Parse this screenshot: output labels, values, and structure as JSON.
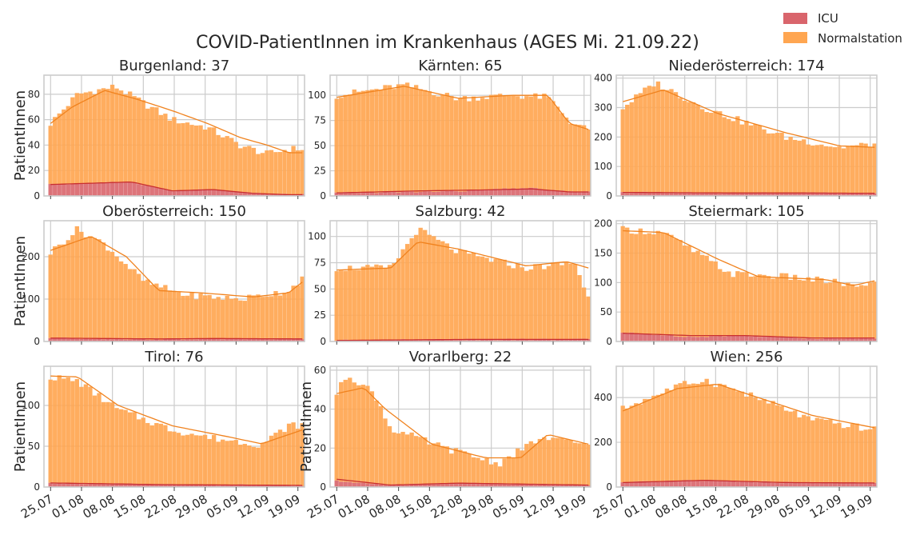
{
  "chart_data": {
    "type": "bar",
    "title": "COVID-PatientInnen im Krankenhaus (AGES Mi. 21.09.22)",
    "ylabel": "PatientInnen",
    "x_tick_labels": [
      "25.07",
      "01.08",
      "08.08",
      "15.08",
      "22.08",
      "29.08",
      "05.09",
      "12.09",
      "19.09"
    ],
    "date_range": [
      "2022-07-25",
      "2022-09-21"
    ],
    "legend": {
      "placement": "top-right",
      "entries": [
        {
          "label": "ICU",
          "color": "#d9656c"
        },
        {
          "label": "Normalstation",
          "color": "#ffa651"
        }
      ]
    },
    "grid": true,
    "stacked": true,
    "series_colors": {
      "icu_bar": "#d9656c",
      "normal_bar": "#ffa651",
      "icu_line": "#c92f2f",
      "normal_line": "#f0821e"
    },
    "panels": [
      {
        "title": "Burgenland: 37",
        "ylim": [
          0,
          95
        ],
        "yticks": [
          0,
          20,
          40,
          60,
          80
        ],
        "ylabel_shown": true,
        "total_start_end": [
          [
            0,
            57
          ],
          [
            10,
            80
          ],
          [
            24,
            86
          ],
          [
            45,
            60
          ],
          [
            58,
            54
          ],
          [
            70,
            40
          ],
          [
            80,
            33
          ],
          [
            88,
            37
          ]
        ],
        "total_line": [
          [
            0,
            57
          ],
          [
            8,
            70
          ],
          [
            20,
            83
          ],
          [
            32,
            76
          ],
          [
            45,
            67
          ],
          [
            58,
            57
          ],
          [
            70,
            46
          ],
          [
            80,
            40
          ],
          [
            88,
            34
          ]
        ],
        "icu_start_end": [
          [
            0,
            9
          ],
          [
            30,
            11
          ],
          [
            45,
            4
          ],
          [
            60,
            5
          ],
          [
            75,
            2
          ],
          [
            88,
            1
          ]
        ],
        "icu_line": [
          [
            0,
            9
          ],
          [
            30,
            11
          ],
          [
            45,
            4
          ],
          [
            60,
            5
          ],
          [
            75,
            2
          ],
          [
            88,
            1
          ]
        ]
      },
      {
        "title": "Kärnten: 65",
        "ylim": [
          0,
          120
        ],
        "yticks": [
          0,
          25,
          50,
          75,
          100
        ],
        "ylabel_shown": false,
        "total_start_end": [
          [
            0,
            100
          ],
          [
            25,
            110
          ],
          [
            45,
            97
          ],
          [
            65,
            100
          ],
          [
            78,
            98
          ],
          [
            86,
            75
          ],
          [
            93,
            65
          ]
        ],
        "total_line": [
          [
            0,
            98
          ],
          [
            25,
            109
          ],
          [
            45,
            97
          ],
          [
            65,
            100
          ],
          [
            78,
            100
          ],
          [
            86,
            72
          ],
          [
            93,
            66
          ]
        ],
        "icu_start_end": [
          [
            0,
            3
          ],
          [
            30,
            4
          ],
          [
            50,
            5
          ],
          [
            70,
            8
          ],
          [
            86,
            4
          ],
          [
            93,
            4
          ]
        ],
        "icu_line": [
          [
            0,
            3
          ],
          [
            30,
            5
          ],
          [
            55,
            6
          ],
          [
            72,
            7
          ],
          [
            86,
            4
          ],
          [
            93,
            4
          ]
        ]
      },
      {
        "title": "Niederösterreich: 174",
        "ylim": [
          0,
          410
        ],
        "yticks": [
          0,
          100,
          200,
          300,
          400
        ],
        "ylabel_shown": false,
        "total_start_end": [
          [
            0,
            300
          ],
          [
            12,
            385
          ],
          [
            30,
            300
          ],
          [
            60,
            200
          ],
          [
            80,
            165
          ],
          [
            93,
            175
          ]
        ],
        "total_line": [
          [
            0,
            320
          ],
          [
            15,
            360
          ],
          [
            35,
            280
          ],
          [
            60,
            215
          ],
          [
            80,
            170
          ],
          [
            93,
            165
          ]
        ],
        "icu_start_end": [
          [
            0,
            12
          ],
          [
            40,
            10
          ],
          [
            65,
            10
          ],
          [
            93,
            9
          ]
        ],
        "icu_line": [
          [
            0,
            12
          ],
          [
            40,
            10
          ],
          [
            65,
            10
          ],
          [
            93,
            9
          ]
        ]
      },
      {
        "title": "Oberösterreich: 150",
        "ylim": [
          0,
          285
        ],
        "yticks": [
          0,
          100,
          200
        ],
        "ylabel_shown": true,
        "total_start_end": [
          [
            0,
            210
          ],
          [
            10,
            265
          ],
          [
            20,
            230
          ],
          [
            35,
            140
          ],
          [
            50,
            110
          ],
          [
            70,
            100
          ],
          [
            88,
            120
          ],
          [
            93,
            150
          ]
        ],
        "total_line": [
          [
            0,
            215
          ],
          [
            15,
            248
          ],
          [
            28,
            200
          ],
          [
            40,
            120
          ],
          [
            55,
            115
          ],
          [
            75,
            105
          ],
          [
            88,
            115
          ],
          [
            93,
            140
          ]
        ],
        "icu_start_end": [
          [
            0,
            8
          ],
          [
            40,
            5
          ],
          [
            60,
            6
          ],
          [
            93,
            6
          ]
        ],
        "icu_line": [
          [
            0,
            8
          ],
          [
            40,
            6
          ],
          [
            60,
            7
          ],
          [
            93,
            6
          ]
        ]
      },
      {
        "title": "Salzburg: 42",
        "ylim": [
          0,
          115
        ],
        "yticks": [
          0,
          25,
          50,
          75,
          100
        ],
        "ylabel_shown": false,
        "total_start_end": [
          [
            0,
            70
          ],
          [
            20,
            70
          ],
          [
            30,
            107
          ],
          [
            45,
            85
          ],
          [
            70,
            70
          ],
          [
            88,
            75
          ],
          [
            93,
            42
          ]
        ],
        "total_line": [
          [
            0,
            68
          ],
          [
            20,
            70
          ],
          [
            30,
            95
          ],
          [
            45,
            88
          ],
          [
            70,
            72
          ],
          [
            85,
            76
          ],
          [
            93,
            70
          ]
        ],
        "icu_start_end": [
          [
            0,
            1
          ],
          [
            50,
            2
          ],
          [
            93,
            2
          ]
        ],
        "icu_line": [
          [
            0,
            1
          ],
          [
            50,
            2
          ],
          [
            93,
            2
          ]
        ]
      },
      {
        "title": "Steiermark: 105",
        "ylim": [
          0,
          205
        ],
        "yticks": [
          0,
          50,
          100,
          150,
          200
        ],
        "ylabel_shown": false,
        "total_start_end": [
          [
            0,
            190
          ],
          [
            15,
            185
          ],
          [
            40,
            115
          ],
          [
            60,
            110
          ],
          [
            80,
            100
          ],
          [
            88,
            90
          ],
          [
            93,
            105
          ]
        ],
        "total_line": [
          [
            0,
            188
          ],
          [
            15,
            185
          ],
          [
            35,
            140
          ],
          [
            50,
            110
          ],
          [
            75,
            105
          ],
          [
            85,
            95
          ],
          [
            93,
            103
          ]
        ],
        "icu_start_end": [
          [
            0,
            15
          ],
          [
            25,
            8
          ],
          [
            45,
            10
          ],
          [
            70,
            5
          ],
          [
            93,
            6
          ]
        ],
        "icu_line": [
          [
            0,
            14
          ],
          [
            25,
            10
          ],
          [
            45,
            10
          ],
          [
            70,
            6
          ],
          [
            93,
            6
          ]
        ]
      },
      {
        "title": "Tirol: 76",
        "ylim": [
          0,
          148
        ],
        "yticks": [
          0,
          50,
          100
        ],
        "ylabel_shown": true,
        "total_start_end": [
          [
            0,
            135
          ],
          [
            10,
            130
          ],
          [
            25,
            95
          ],
          [
            45,
            70
          ],
          [
            60,
            60
          ],
          [
            78,
            52
          ],
          [
            88,
            75
          ],
          [
            93,
            76
          ]
        ],
        "total_line": [
          [
            0,
            136
          ],
          [
            10,
            135
          ],
          [
            25,
            100
          ],
          [
            45,
            75
          ],
          [
            65,
            62
          ],
          [
            78,
            53
          ],
          [
            93,
            70
          ]
        ],
        "icu_start_end": [
          [
            0,
            5
          ],
          [
            40,
            3
          ],
          [
            93,
            2
          ]
        ],
        "icu_line": [
          [
            0,
            5
          ],
          [
            40,
            3
          ],
          [
            93,
            2
          ]
        ]
      },
      {
        "title": "Vorarlberg: 22",
        "ylim": [
          0,
          62
        ],
        "yticks": [
          0,
          20,
          40,
          60
        ],
        "ylabel_shown": true,
        "total_start_end": [
          [
            0,
            48
          ],
          [
            4,
            58
          ],
          [
            14,
            48
          ],
          [
            20,
            30
          ],
          [
            40,
            20
          ],
          [
            60,
            12
          ],
          [
            75,
            25
          ],
          [
            93,
            22
          ]
        ],
        "total_line": [
          [
            0,
            48
          ],
          [
            10,
            51
          ],
          [
            18,
            40
          ],
          [
            35,
            22
          ],
          [
            55,
            15
          ],
          [
            68,
            15
          ],
          [
            78,
            27
          ],
          [
            93,
            22
          ]
        ],
        "icu_start_end": [
          [
            0,
            3
          ],
          [
            20,
            1
          ],
          [
            45,
            2
          ],
          [
            93,
            1
          ]
        ],
        "icu_line": [
          [
            0,
            4
          ],
          [
            20,
            1
          ],
          [
            45,
            2
          ],
          [
            93,
            1
          ]
        ]
      },
      {
        "title": "Wien: 256",
        "ylim": [
          0,
          540
        ],
        "yticks": [
          0,
          200,
          400
        ],
        "ylabel_shown": false,
        "total_start_end": [
          [
            0,
            350
          ],
          [
            20,
            450
          ],
          [
            30,
            480
          ],
          [
            45,
            420
          ],
          [
            70,
            300
          ],
          [
            93,
            256
          ]
        ],
        "total_line": [
          [
            0,
            340
          ],
          [
            20,
            440
          ],
          [
            35,
            460
          ],
          [
            50,
            400
          ],
          [
            70,
            320
          ],
          [
            93,
            265
          ]
        ],
        "icu_start_end": [
          [
            0,
            20
          ],
          [
            30,
            30
          ],
          [
            60,
            20
          ],
          [
            93,
            18
          ]
        ],
        "icu_line": [
          [
            0,
            20
          ],
          [
            30,
            30
          ],
          [
            60,
            20
          ],
          [
            93,
            18
          ]
        ]
      }
    ]
  }
}
